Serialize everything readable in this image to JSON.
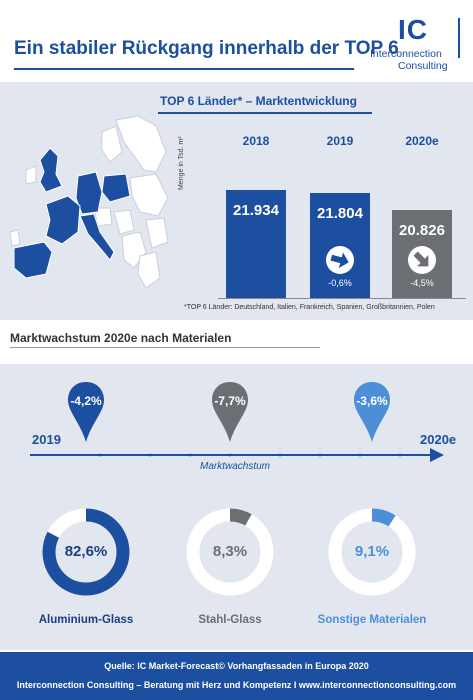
{
  "header": {
    "title": "Ein stabiler Rückgang innerhalb der TOP 6",
    "logo_mark": "IC",
    "logo_line1": "Interconnection",
    "logo_line2": "Consulting"
  },
  "market": {
    "heading": "TOP 6 Länder* – Marktentwicklung",
    "ylabel": "Menge in Tsd. m²",
    "footnote": "*TOP 6 Länder: Deutschland, Italien, Frankreich, Spanien, Großbritannien, Polen"
  },
  "chart_data": [
    {
      "type": "bar",
      "title": "TOP 6 Länder* – Marktentwicklung",
      "ylabel": "Menge in Tsd. m²",
      "categories": [
        "2018",
        "2019",
        "2020e"
      ],
      "values": [
        21934,
        21804,
        20826
      ],
      "value_labels": [
        "21.934",
        "21.804",
        "20.826"
      ],
      "changes": [
        "",
        "-0,6%",
        "-4,5%"
      ],
      "colors": [
        "#1c4fa0",
        "#1c4fa0",
        "#6b6e73"
      ]
    },
    {
      "type": "pie",
      "title": "Marktwachstum 2020e nach Materialen",
      "categories": [
        "Aluminium-Glass",
        "Stahl-Glass",
        "Sonstige Materialen"
      ],
      "values": [
        82.6,
        8.3,
        9.1
      ],
      "value_labels": [
        "82,6%",
        "8,3%",
        "9,1%"
      ],
      "growth": [
        "-4,2%",
        "-7,7%",
        "-3,6%"
      ],
      "colors": [
        "#1c4fa0",
        "#6b6e73",
        "#4d8fd6"
      ]
    }
  ],
  "materials": {
    "heading": "Marktwachstum 2020e nach Materialen",
    "timeline_start": "2019",
    "timeline_end": "2020e",
    "timeline_caption": "Marktwachstum"
  },
  "footer": {
    "source": "Quelle: IC Market-Forecast© Vorhangfassaden in Europa 2020",
    "tagline": "Interconnection Consulting – Beratung mit Herz und Kompetenz  I  www.interconnectionconsulting.com"
  },
  "colors": {
    "brand_blue": "#1c4fa0",
    "grey": "#6b6e73",
    "light_blue": "#4d8fd6",
    "panel": "#e1e6ef"
  }
}
